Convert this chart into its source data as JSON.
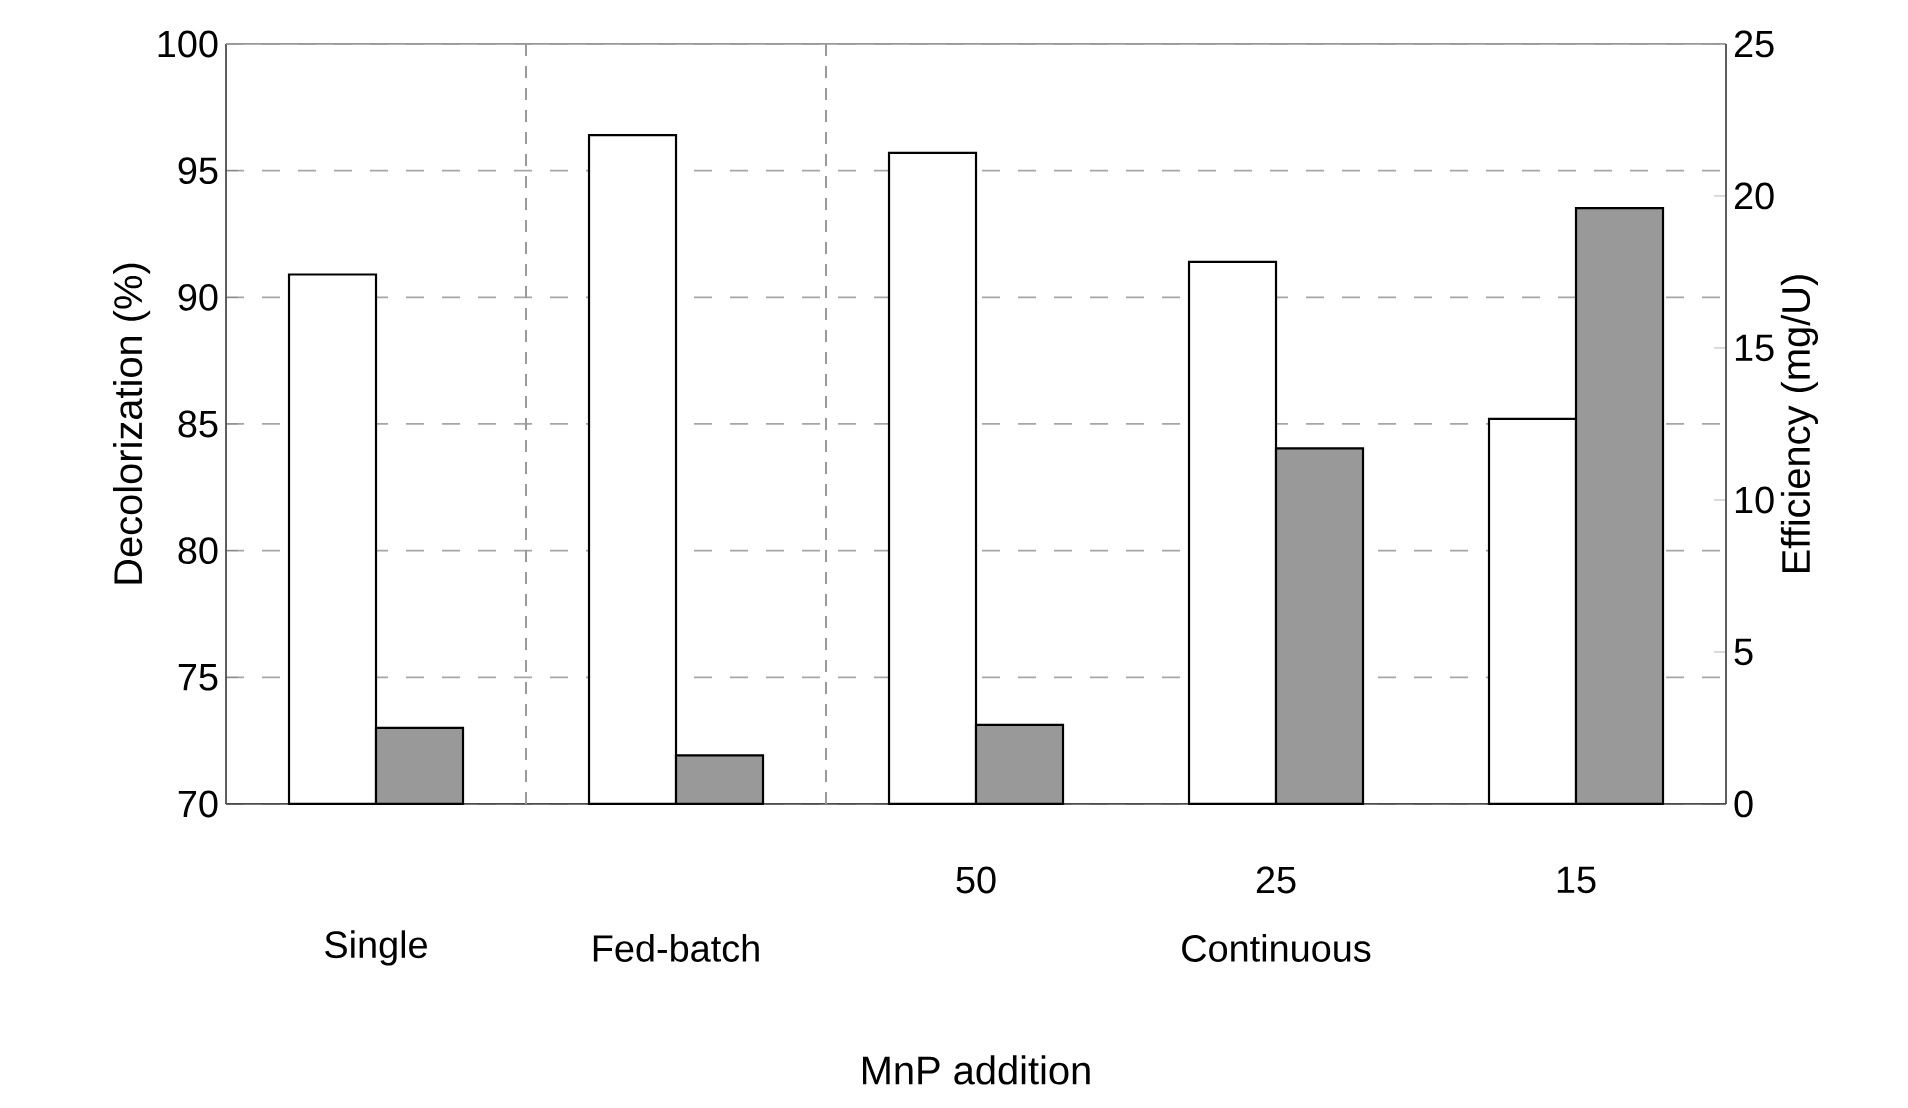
{
  "chart_data": {
    "type": "bar",
    "xlabel": "MnP addition",
    "ylabel": "Decolorization (%)",
    "y2label": "Efficiency (mg/U)",
    "categories": [
      "Single",
      "Fed-batch",
      "50",
      "25",
      "15"
    ],
    "series": [
      {
        "color": "#ffffff",
        "values": [
          90.9,
          96.4,
          95.7,
          91.4,
          85.2
        ]
      },
      {
        "color": "#999999",
        "axis": "y2",
        "values": [
          2.5,
          1.6,
          2.6,
          11.7,
          19.6
        ]
      }
    ],
    "ylim": [
      70,
      100
    ],
    "yticks": [
      70,
      75,
      80,
      85,
      90,
      95,
      100
    ],
    "y2lim": [
      0,
      25
    ],
    "y2ticks": [
      0,
      5,
      10,
      15,
      20,
      25
    ],
    "grid": "y",
    "annotations": [
      "Continuous"
    ]
  }
}
